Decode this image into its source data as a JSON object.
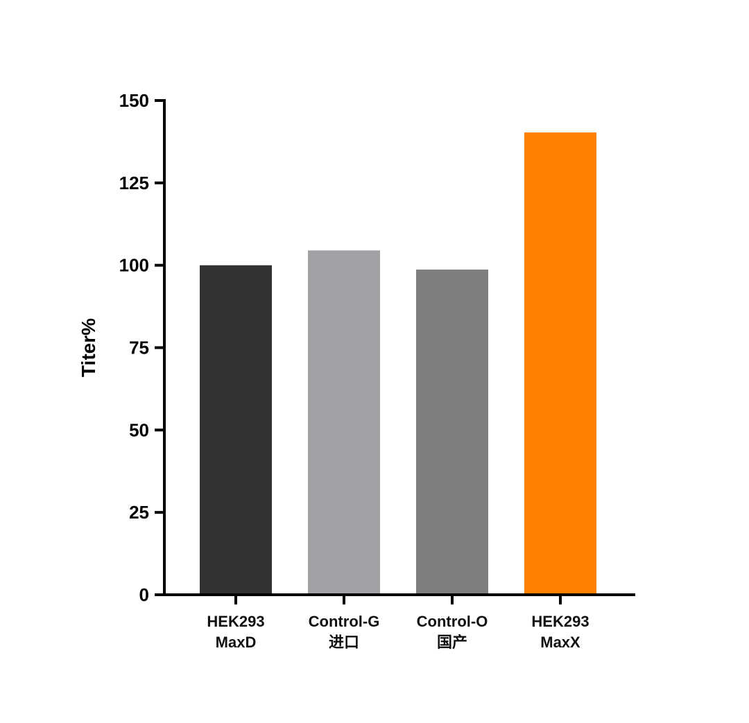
{
  "chart_data": {
    "type": "bar",
    "categories": [
      [
        "HEK293",
        "MaxD"
      ],
      [
        "Control-G",
        "进口"
      ],
      [
        "Control-O",
        "国产"
      ],
      [
        "HEK293",
        "MaxX"
      ]
    ],
    "values": [
      100,
      104.5,
      98.7,
      140.3
    ],
    "bar_colors": [
      "#333333",
      "#a2a1a6",
      "#7f7f7f",
      "#ff8000"
    ],
    "ylabel": "Titer%",
    "xlabel": "",
    "title": "",
    "ylim": [
      0,
      150
    ],
    "yticks": [
      0,
      25,
      50,
      75,
      100,
      125,
      150
    ],
    "grid": false,
    "legend": "none"
  }
}
